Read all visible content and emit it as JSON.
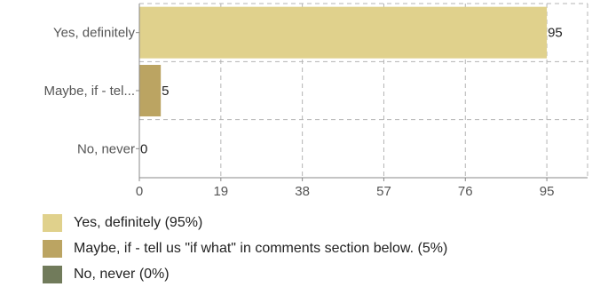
{
  "chart_data": {
    "type": "bar",
    "orientation": "horizontal",
    "categories": [
      "Yes, definitely",
      "Maybe, if - tel...",
      "No, never"
    ],
    "values": [
      95,
      5,
      0
    ],
    "data_labels": [
      "95",
      "5",
      "0"
    ],
    "colors": [
      "#e0d18c",
      "#bba462",
      "#717b5b"
    ],
    "xlim": [
      0,
      104.5
    ],
    "xticks": [
      0,
      19,
      38,
      57,
      76,
      95
    ],
    "grid": true,
    "grid_style": "dashed",
    "legend_position": "bottom-left",
    "legend": [
      "Yes, definitely (95%)",
      "Maybe, if - tell us \"if what\" in comments section below. (5%)",
      "No, never (0%)"
    ]
  }
}
